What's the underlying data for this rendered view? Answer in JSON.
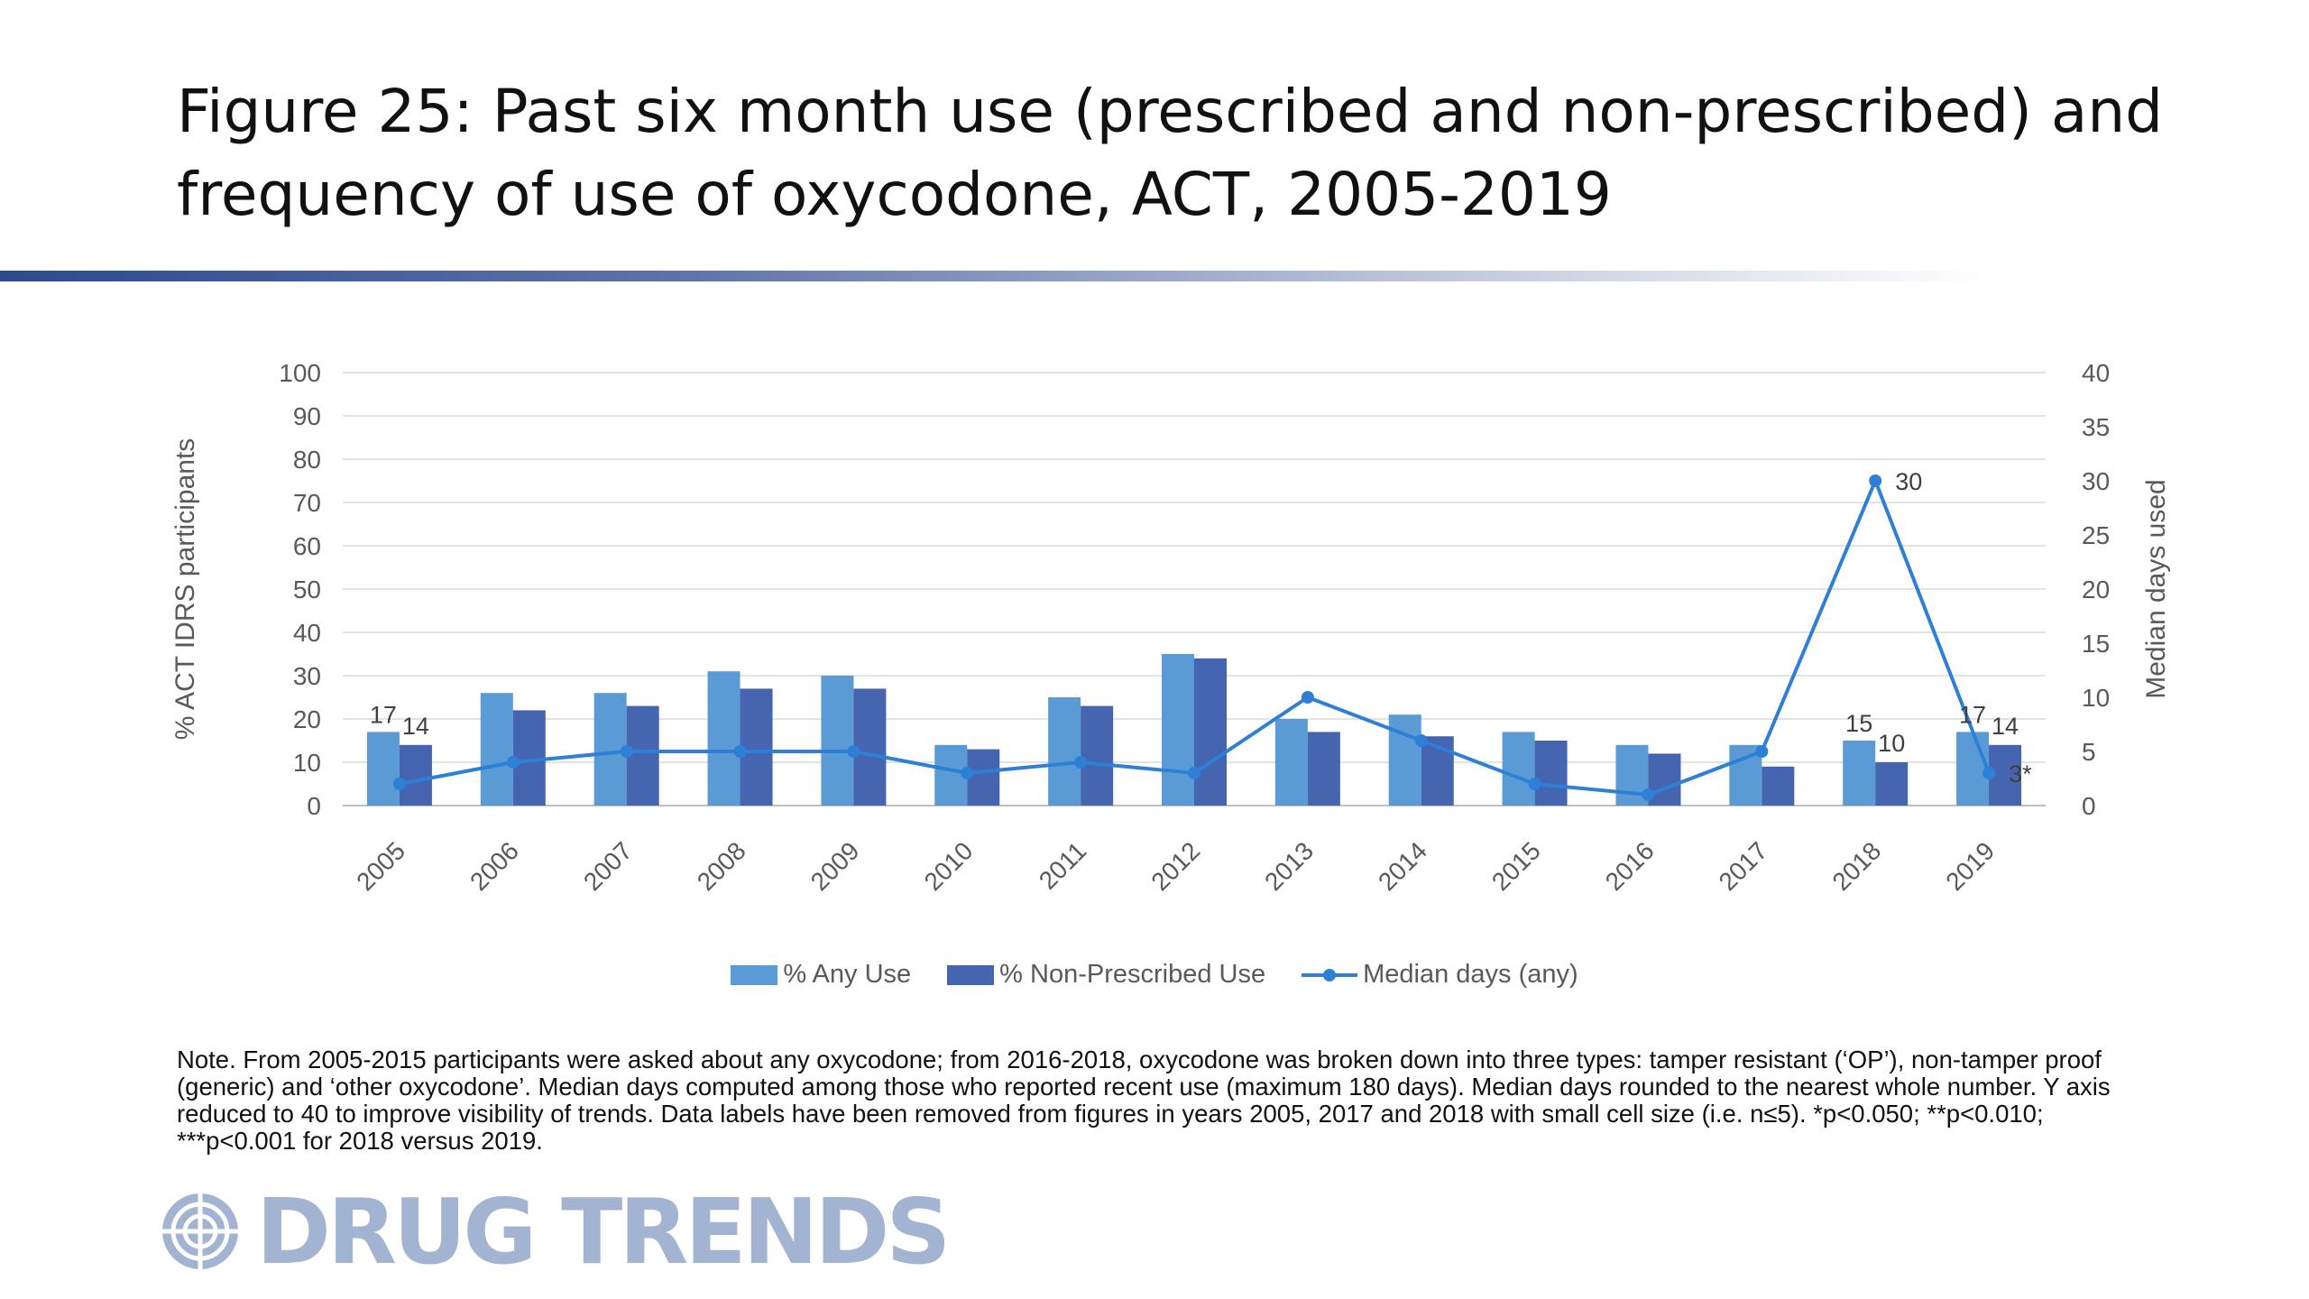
{
  "title": "Figure 25: Past six month use (prescribed and non-prescribed) and frequency of use of oxycodone, ACT, 2005-2019",
  "colors": {
    "any_use": "#5b9bd5",
    "non_prescribed": "#4565b1",
    "median_line": "#2e7fd6",
    "title_rule": "#2e4a8c",
    "logo": "#a3b4d3"
  },
  "chart_data": {
    "type": "bar",
    "categories": [
      "2005",
      "2006",
      "2007",
      "2008",
      "2009",
      "2010",
      "2011",
      "2012",
      "2013",
      "2014",
      "2015",
      "2016",
      "2017",
      "2018",
      "2019"
    ],
    "series": [
      {
        "name": "% Any Use",
        "type": "bar",
        "axis": "left",
        "values": [
          17,
          26,
          26,
          31,
          30,
          14,
          25,
          35,
          20,
          21,
          17,
          14,
          14,
          15,
          17
        ]
      },
      {
        "name": "% Non-Prescribed Use",
        "type": "bar",
        "axis": "left",
        "values": [
          14,
          22,
          23,
          27,
          27,
          13,
          23,
          34,
          17,
          16,
          15,
          12,
          9,
          10,
          14
        ]
      },
      {
        "name": "Median days (any)",
        "type": "line",
        "axis": "right",
        "values": [
          2,
          4,
          5,
          5,
          5,
          3,
          4,
          3,
          10,
          6,
          2,
          1,
          5,
          30,
          3
        ]
      }
    ],
    "ylabel": "% ACT IDRS participants",
    "y2label": "Median days used",
    "ylim": [
      0,
      100
    ],
    "y2lim": [
      0,
      40
    ],
    "yticks": [
      0,
      10,
      20,
      30,
      40,
      50,
      60,
      70,
      80,
      90,
      100
    ],
    "y2ticks": [
      0,
      5,
      10,
      15,
      20,
      25,
      30,
      35,
      40
    ],
    "data_labels": {
      "any_use": [
        {
          "index": 0,
          "text": "17"
        },
        {
          "index": 13,
          "text": "15"
        },
        {
          "index": 14,
          "text": "17"
        }
      ],
      "non_prescribed": [
        {
          "index": 0,
          "text": "14"
        },
        {
          "index": 13,
          "text": "10"
        },
        {
          "index": 14,
          "text": "14"
        }
      ],
      "median": [
        {
          "index": 13,
          "text": "30"
        },
        {
          "index": 14,
          "text": "3*"
        }
      ]
    },
    "grid": true,
    "legend_position": "bottom"
  },
  "legend": {
    "any_use": "% Any Use",
    "non_prescribed": "% Non-Prescribed Use",
    "median": "Median days (any)"
  },
  "note": "Note. From 2005-2015 participants were asked about any oxycodone; from 2016-2018, oxycodone was broken down into three types: tamper resistant (‘OP’), non-tamper proof (generic) and ‘other oxycodone’. Median days computed among those who reported recent use (maximum 180 days). Median days rounded to the nearest whole number. Y axis reduced to 40 to improve visibility of trends. Data labels have been removed from figures in years 2005, 2017 and 2018 with small cell size (i.e. n≤5). *p<0.050; **p<0.010; ***p<0.001 for 2018 versus 2019.",
  "logo": {
    "text": "DRUG TRENDS",
    "icon": "globe-icon"
  }
}
